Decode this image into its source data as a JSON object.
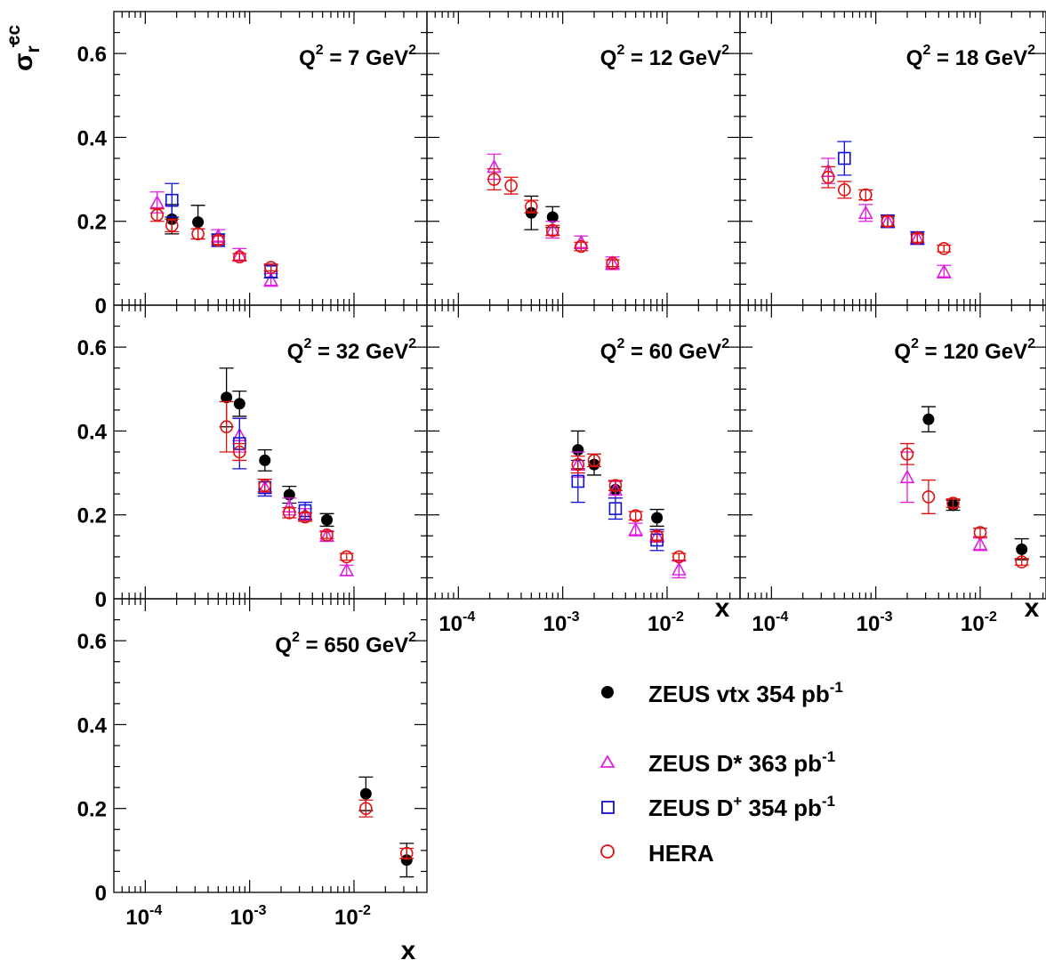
{
  "figure": {
    "y_label": "σ",
    "y_label_sub": "r",
    "y_label_sup": "cc",
    "x_label": "x",
    "q2_prefix": "Q",
    "q2_power": "2",
    "q2_eq": " = ",
    "q2_unit": " GeV",
    "q2_unit_power": "2"
  },
  "legend": [
    {
      "marker": "filled-circle",
      "color": "#000000",
      "label": "ZEUS vtx 354 pb",
      "sup": "-1"
    },
    {
      "marker": "open-triangle",
      "color": "#e020e0",
      "label": "ZEUS D* 363 pb",
      "sup": "-1"
    },
    {
      "marker": "open-square",
      "color": "#1010d0",
      "label": "ZEUS D",
      "label_sup": "+",
      "label_rest": " 354 pb",
      "sup": "-1"
    },
    {
      "marker": "open-circle",
      "color": "#e01010",
      "label": "HERA",
      "sup": ""
    }
  ],
  "chart_data": {
    "type": "scatter",
    "xscale": "log",
    "xlim": [
      5e-05,
      0.05
    ],
    "ylim": [
      0,
      0.7
    ],
    "x_tick_labels": [
      {
        "base": "10",
        "exp": "-4",
        "value": 0.0001
      },
      {
        "base": "10",
        "exp": "-3",
        "value": 0.001
      },
      {
        "base": "10",
        "exp": "-2",
        "value": 0.01
      }
    ],
    "y_tick_labels": [
      {
        "label": "0",
        "value": 0
      },
      {
        "label": "0.2",
        "value": 0.2
      },
      {
        "label": "0.4",
        "value": 0.4
      },
      {
        "label": "0.6",
        "value": 0.6
      }
    ],
    "panels": [
      {
        "q2": "7",
        "series": [
          {
            "name": "ZEUS vtx 354 pb-1",
            "points": [
              {
                "x": 0.00018,
                "y": 0.205,
                "e": 0.035
              },
              {
                "x": 0.00032,
                "y": 0.198,
                "e": 0.04
              }
            ]
          },
          {
            "name": "ZEUS D* 363 pb-1",
            "points": [
              {
                "x": 0.00013,
                "y": 0.245,
                "e": 0.025
              },
              {
                "x": 0.0005,
                "y": 0.165,
                "e": 0.015
              },
              {
                "x": 0.0008,
                "y": 0.12,
                "e": 0.015
              },
              {
                "x": 0.0016,
                "y": 0.06,
                "e": 0.015
              }
            ]
          },
          {
            "name": "ZEUS D+ 354 pb-1",
            "points": [
              {
                "x": 0.00018,
                "y": 0.25,
                "e": 0.04
              },
              {
                "x": 0.0005,
                "y": 0.155,
                "e": 0.015
              },
              {
                "x": 0.0016,
                "y": 0.08,
                "e": 0.015
              }
            ]
          },
          {
            "name": "HERA",
            "points": [
              {
                "x": 0.00013,
                "y": 0.215,
                "e": 0.015
              },
              {
                "x": 0.00018,
                "y": 0.19,
                "e": 0.015
              },
              {
                "x": 0.00032,
                "y": 0.17,
                "e": 0.012
              },
              {
                "x": 0.0005,
                "y": 0.155,
                "e": 0.01
              },
              {
                "x": 0.0008,
                "y": 0.115,
                "e": 0.008
              },
              {
                "x": 0.0016,
                "y": 0.09,
                "e": 0.008
              }
            ]
          }
        ]
      },
      {
        "q2": "12",
        "series": [
          {
            "name": "ZEUS vtx 354 pb-1",
            "points": [
              {
                "x": 0.0005,
                "y": 0.22,
                "e": 0.04
              },
              {
                "x": 0.0008,
                "y": 0.21,
                "e": 0.025
              }
            ]
          },
          {
            "name": "ZEUS D* 363 pb-1",
            "points": [
              {
                "x": 0.00022,
                "y": 0.33,
                "e": 0.03
              },
              {
                "x": 0.0008,
                "y": 0.18,
                "e": 0.02
              },
              {
                "x": 0.0015,
                "y": 0.15,
                "e": 0.015
              },
              {
                "x": 0.003,
                "y": 0.1,
                "e": 0.015
              }
            ]
          },
          {
            "name": "ZEUS D+ 354 pb-1",
            "points": []
          },
          {
            "name": "HERA",
            "points": [
              {
                "x": 0.00022,
                "y": 0.3,
                "e": 0.025
              },
              {
                "x": 0.00032,
                "y": 0.285,
                "e": 0.02
              },
              {
                "x": 0.0005,
                "y": 0.235,
                "e": 0.015
              },
              {
                "x": 0.0008,
                "y": 0.178,
                "e": 0.012
              },
              {
                "x": 0.0015,
                "y": 0.14,
                "e": 0.01
              },
              {
                "x": 0.003,
                "y": 0.1,
                "e": 0.008
              }
            ]
          }
        ]
      },
      {
        "q2": "18",
        "series": [
          {
            "name": "ZEUS vtx 354 pb-1",
            "points": []
          },
          {
            "name": "ZEUS D* 363 pb-1",
            "points": [
              {
                "x": 0.00035,
                "y": 0.32,
                "e": 0.03
              },
              {
                "x": 0.0008,
                "y": 0.22,
                "e": 0.02
              },
              {
                "x": 0.0013,
                "y": 0.2,
                "e": 0.015
              },
              {
                "x": 0.0025,
                "y": 0.16,
                "e": 0.015
              },
              {
                "x": 0.0045,
                "y": 0.08,
                "e": 0.015
              }
            ]
          },
          {
            "name": "ZEUS D+ 354 pb-1",
            "points": [
              {
                "x": 0.0005,
                "y": 0.35,
                "e": 0.04
              },
              {
                "x": 0.0013,
                "y": 0.2,
                "e": 0.015
              },
              {
                "x": 0.0025,
                "y": 0.16,
                "e": 0.015
              }
            ]
          },
          {
            "name": "HERA",
            "points": [
              {
                "x": 0.00035,
                "y": 0.305,
                "e": 0.025
              },
              {
                "x": 0.0005,
                "y": 0.275,
                "e": 0.02
              },
              {
                "x": 0.0008,
                "y": 0.263,
                "e": 0.012
              },
              {
                "x": 0.0013,
                "y": 0.2,
                "e": 0.012
              },
              {
                "x": 0.0025,
                "y": 0.16,
                "e": 0.01
              },
              {
                "x": 0.0045,
                "y": 0.135,
                "e": 0.008
              }
            ]
          }
        ]
      },
      {
        "q2": "32",
        "series": [
          {
            "name": "ZEUS vtx 354 pb-1",
            "points": [
              {
                "x": 0.0006,
                "y": 0.48,
                "e": 0.07
              },
              {
                "x": 0.0008,
                "y": 0.465,
                "e": 0.03
              },
              {
                "x": 0.0014,
                "y": 0.33,
                "e": 0.025
              },
              {
                "x": 0.0024,
                "y": 0.248,
                "e": 0.02
              },
              {
                "x": 0.0055,
                "y": 0.188,
                "e": 0.015
              }
            ]
          },
          {
            "name": "ZEUS D* 363 pb-1",
            "points": [
              {
                "x": 0.0008,
                "y": 0.39,
                "e": 0.04
              },
              {
                "x": 0.0014,
                "y": 0.265,
                "e": 0.02
              },
              {
                "x": 0.0024,
                "y": 0.22,
                "e": 0.02
              },
              {
                "x": 0.0034,
                "y": 0.2,
                "e": 0.015
              },
              {
                "x": 0.0055,
                "y": 0.15,
                "e": 0.012
              },
              {
                "x": 0.0085,
                "y": 0.068,
                "e": 0.012
              }
            ]
          },
          {
            "name": "ZEUS D+ 354 pb-1",
            "points": [
              {
                "x": 0.0008,
                "y": 0.37,
                "e": 0.06
              },
              {
                "x": 0.0014,
                "y": 0.265,
                "e": 0.02
              },
              {
                "x": 0.0034,
                "y": 0.21,
                "e": 0.02
              }
            ]
          },
          {
            "name": "HERA",
            "points": [
              {
                "x": 0.0006,
                "y": 0.41,
                "e": 0.06
              },
              {
                "x": 0.0008,
                "y": 0.35,
                "e": 0.02
              },
              {
                "x": 0.0014,
                "y": 0.27,
                "e": 0.015
              },
              {
                "x": 0.0024,
                "y": 0.205,
                "e": 0.012
              },
              {
                "x": 0.0034,
                "y": 0.195,
                "e": 0.01
              },
              {
                "x": 0.0055,
                "y": 0.152,
                "e": 0.008
              },
              {
                "x": 0.0085,
                "y": 0.1,
                "e": 0.008
              }
            ]
          }
        ]
      },
      {
        "q2": "60",
        "series": [
          {
            "name": "ZEUS vtx 354 pb-1",
            "points": [
              {
                "x": 0.0014,
                "y": 0.355,
                "e": 0.045
              },
              {
                "x": 0.002,
                "y": 0.32,
                "e": 0.025
              },
              {
                "x": 0.0032,
                "y": 0.26,
                "e": 0.02
              },
              {
                "x": 0.008,
                "y": 0.193,
                "e": 0.02
              }
            ]
          },
          {
            "name": "ZEUS D* 363 pb-1",
            "points": [
              {
                "x": 0.0014,
                "y": 0.32,
                "e": 0.03
              },
              {
                "x": 0.0032,
                "y": 0.26,
                "e": 0.02
              },
              {
                "x": 0.005,
                "y": 0.165,
                "e": 0.015
              },
              {
                "x": 0.008,
                "y": 0.15,
                "e": 0.015
              },
              {
                "x": 0.013,
                "y": 0.07,
                "e": 0.02
              }
            ]
          },
          {
            "name": "ZEUS D+ 354 pb-1",
            "points": [
              {
                "x": 0.0014,
                "y": 0.28,
                "e": 0.05
              },
              {
                "x": 0.0032,
                "y": 0.215,
                "e": 0.025
              },
              {
                "x": 0.008,
                "y": 0.14,
                "e": 0.025
              }
            ]
          },
          {
            "name": "HERA",
            "points": [
              {
                "x": 0.0014,
                "y": 0.32,
                "e": 0.02
              },
              {
                "x": 0.002,
                "y": 0.33,
                "e": 0.015
              },
              {
                "x": 0.0032,
                "y": 0.27,
                "e": 0.012
              },
              {
                "x": 0.005,
                "y": 0.198,
                "e": 0.01
              },
              {
                "x": 0.008,
                "y": 0.15,
                "e": 0.01
              },
              {
                "x": 0.013,
                "y": 0.1,
                "e": 0.008
              }
            ]
          }
        ]
      },
      {
        "q2": "120",
        "series": [
          {
            "name": "ZEUS vtx 354 pb-1",
            "points": [
              {
                "x": 0.0032,
                "y": 0.428,
                "e": 0.03
              },
              {
                "x": 0.0055,
                "y": 0.223,
                "e": 0.012
              },
              {
                "x": 0.025,
                "y": 0.118,
                "e": 0.025
              }
            ]
          },
          {
            "name": "ZEUS D* 363 pb-1",
            "points": [
              {
                "x": 0.002,
                "y": 0.29,
                "e": 0.06
              },
              {
                "x": 0.01,
                "y": 0.13,
                "e": 0.015
              }
            ]
          },
          {
            "name": "ZEUS D+ 354 pb-1",
            "points": []
          },
          {
            "name": "HERA",
            "points": [
              {
                "x": 0.002,
                "y": 0.345,
                "e": 0.025
              },
              {
                "x": 0.0032,
                "y": 0.243,
                "e": 0.04
              },
              {
                "x": 0.0055,
                "y": 0.228,
                "e": 0.01
              },
              {
                "x": 0.01,
                "y": 0.158,
                "e": 0.01
              },
              {
                "x": 0.025,
                "y": 0.088,
                "e": 0.008
              }
            ]
          }
        ]
      },
      {
        "q2": "650",
        "series": [
          {
            "name": "ZEUS vtx 354 pb-1",
            "points": [
              {
                "x": 0.013,
                "y": 0.235,
                "e": 0.04
              },
              {
                "x": 0.032,
                "y": 0.077,
                "e": 0.04
              }
            ]
          },
          {
            "name": "ZEUS D* 363 pb-1",
            "points": []
          },
          {
            "name": "ZEUS D+ 354 pb-1",
            "points": []
          },
          {
            "name": "HERA",
            "points": [
              {
                "x": 0.013,
                "y": 0.2,
                "e": 0.02
              },
              {
                "x": 0.032,
                "y": 0.093,
                "e": 0.012
              }
            ]
          }
        ]
      }
    ]
  }
}
